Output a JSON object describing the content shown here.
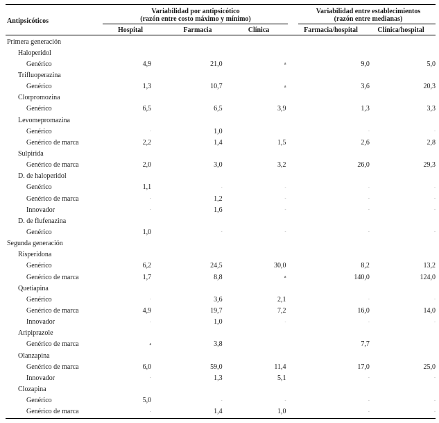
{
  "header": {
    "col_antipsicoticos": "Antipsicóticos",
    "group1_line1": "Variabilidad por antipsicótico",
    "group1_line2": "(razón entre costo máximo y mínimo)",
    "group2_line1": "Variabilidad entre establecimientos",
    "group2_line2": "(razón entre medianas)",
    "hospital": "Hospital",
    "farmacia": "Farmacia",
    "clinica": "Clínica",
    "farmacia_hospital": "Farmacia/hospital",
    "clinica_hospital": "Clínica/hospital"
  },
  "rows": [
    {
      "level": 0,
      "label": "Primera generación",
      "v": [
        "",
        "",
        "",
        "",
        ""
      ]
    },
    {
      "level": 1,
      "label": "Haloperidol",
      "v": [
        "",
        "",
        "",
        "",
        ""
      ]
    },
    {
      "level": 2,
      "label": "Genérico",
      "v": [
        "4,9",
        "21,0",
        "a",
        "9,0",
        "5,0"
      ]
    },
    {
      "level": 1,
      "label": "Trifluoperazina",
      "v": [
        "",
        "",
        "",
        "",
        ""
      ]
    },
    {
      "level": 2,
      "label": "Genérico",
      "v": [
        "1,3",
        "10,7",
        "a",
        "3,6",
        "20,3"
      ]
    },
    {
      "level": 1,
      "label": "Clorpromozina",
      "v": [
        "",
        "",
        "",
        "",
        ""
      ]
    },
    {
      "level": 2,
      "label": "Genérico",
      "v": [
        "6,5",
        "6,5",
        "3,9",
        "1,3",
        "3,3"
      ]
    },
    {
      "level": 1,
      "label": "Levomepromazina",
      "v": [
        "",
        "",
        "",
        "",
        ""
      ]
    },
    {
      "level": 2,
      "label": "Genérico",
      "v": [
        "-",
        "1,0",
        "",
        "-",
        "-"
      ]
    },
    {
      "level": 2,
      "label": "Genérico de marca",
      "v": [
        "2,2",
        "1,4",
        "1,5",
        "2,6",
        "2,8"
      ]
    },
    {
      "level": 1,
      "label": "Sulpirida",
      "v": [
        "",
        "",
        "",
        "",
        ""
      ]
    },
    {
      "level": 2,
      "label": "Genérico de marca",
      "v": [
        "2,0",
        "3,0",
        "3,2",
        "26,0",
        "29,3"
      ]
    },
    {
      "level": 1,
      "label": "D. de haloperidol",
      "v": [
        "",
        "",
        "",
        "",
        ""
      ]
    },
    {
      "level": 2,
      "label": "Genérico",
      "v": [
        "1,1",
        "-",
        "-",
        "-",
        "-"
      ]
    },
    {
      "level": 2,
      "label": "Genérico de marca",
      "v": [
        "-",
        "1,2",
        "-",
        "-",
        "-"
      ]
    },
    {
      "level": 2,
      "label": "Innovador",
      "v": [
        "-",
        "1,6",
        "-",
        "-",
        "-"
      ]
    },
    {
      "level": 1,
      "label": "D. de flufenazina",
      "v": [
        "",
        "",
        "",
        "",
        ""
      ]
    },
    {
      "level": 2,
      "label": "Genérico",
      "v": [
        "1,0",
        "-",
        "-",
        "-",
        "-"
      ]
    },
    {
      "level": 0,
      "label": "Segunda generación",
      "v": [
        "",
        "",
        "",
        "",
        ""
      ]
    },
    {
      "level": 1,
      "label": "Risperidona",
      "v": [
        "",
        "",
        "",
        "",
        ""
      ]
    },
    {
      "level": 2,
      "label": "Genérico",
      "v": [
        "6,2",
        "24,5",
        "30,0",
        "8,2",
        "13,2"
      ]
    },
    {
      "level": 2,
      "label": "Genérico de marca",
      "v": [
        "1,7",
        "8,8",
        "a",
        "140,0",
        "124,0"
      ]
    },
    {
      "level": 1,
      "label": "Quetiapina",
      "v": [
        "",
        "",
        "",
        "",
        ""
      ]
    },
    {
      "level": 2,
      "label": "Genérico",
      "v": [
        "-",
        "3,6",
        "2,1",
        "-",
        "-"
      ]
    },
    {
      "level": 2,
      "label": "Genérico de marca",
      "v": [
        "4,9",
        "19,7",
        "7,2",
        "16,0",
        "14,0"
      ]
    },
    {
      "level": 2,
      "label": "Innovador",
      "v": [
        "-",
        "1,0",
        "-",
        "-",
        "-"
      ]
    },
    {
      "level": 1,
      "label": "Aripiprazole",
      "v": [
        "",
        "",
        "",
        "",
        ""
      ]
    },
    {
      "level": 2,
      "label": "Genérico de marca",
      "v": [
        "a",
        "3,8",
        "",
        "7,7",
        ""
      ]
    },
    {
      "level": 1,
      "label": "Olanzapina",
      "v": [
        "",
        "",
        "",
        "",
        ""
      ]
    },
    {
      "level": 2,
      "label": "Genérico de marca",
      "v": [
        "6,0",
        "59,0",
        "11,4",
        "17,0",
        "25,0"
      ]
    },
    {
      "level": 2,
      "label": "Innovador",
      "v": [
        "-",
        "1,3",
        "5,1",
        "-",
        "-"
      ]
    },
    {
      "level": 1,
      "label": "Clozapina",
      "v": [
        "",
        "",
        "",
        "",
        ""
      ]
    },
    {
      "level": 2,
      "label": "Genérico",
      "v": [
        "5,0",
        "-",
        "-",
        "-",
        "-"
      ]
    },
    {
      "level": 2,
      "label": "Genérico de marca",
      "v": [
        "-",
        "1,4",
        "1,0",
        "-",
        "-"
      ]
    }
  ]
}
